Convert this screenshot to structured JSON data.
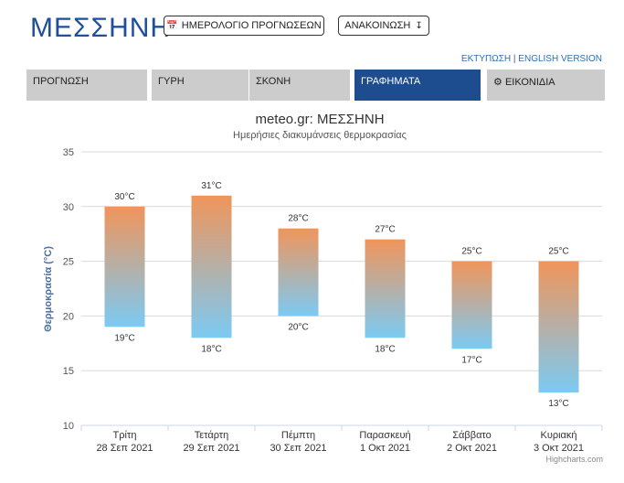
{
  "header": {
    "title": "ΜΕΣΣΗΝΗ",
    "calendar_button": "ΗΜΕΡΟΛΟΓΙΟ ΠΡΟΓΝΩΣΕΩΝ",
    "announcement_button": "ΑΝΑΚΟΙΝΩΣΗ",
    "print_link": "ΕΚΤΥΠΩΣΗ",
    "separator": "|",
    "english_link": "ENGLISH VERSION"
  },
  "tabs": [
    {
      "label": "ΠΡΟΓΝΩΣΗ"
    },
    {
      "label": "ΓΥΡΗ"
    },
    {
      "label": "ΣΚΟΝΗ"
    },
    {
      "label": "ΓΡΑΦΗΜΑΤΑ"
    },
    {
      "label": "ΕΙΚΟΝΙΔΙΑ"
    }
  ],
  "colors": {
    "accent": "#1e4d8f",
    "bar_top": "#f0955a",
    "bar_bottom": "#7ccaf3"
  },
  "chart_data": {
    "type": "bar",
    "subtype": "columnrange",
    "title": "meteo.gr: ΜΕΣΣΗΝΗ",
    "subtitle": "Ημερήσιες διακυμάνσεις θερμοκρασίας",
    "ylabel": "Θερμοκρασία (°C)",
    "xlabel": "",
    "ylim": [
      10,
      35
    ],
    "yticks": [
      10,
      15,
      20,
      25,
      30,
      35
    ],
    "grid": true,
    "categories": [
      [
        "Τρίτη",
        "28 Σεπ 2021"
      ],
      [
        "Τετάρτη",
        "29 Σεπ 2021"
      ],
      [
        "Πέμπτη",
        "30 Σεπ 2021"
      ],
      [
        "Παρασκευή",
        "1 Οκτ 2021"
      ],
      [
        "Σάββατο",
        "2 Οκτ 2021"
      ],
      [
        "Κυριακή",
        "3 Οκτ 2021"
      ]
    ],
    "high": [
      30,
      31,
      28,
      27,
      25,
      25
    ],
    "low": [
      19,
      18,
      20,
      18,
      17,
      13
    ],
    "unit": "°C",
    "credit": "Highcharts.com"
  }
}
